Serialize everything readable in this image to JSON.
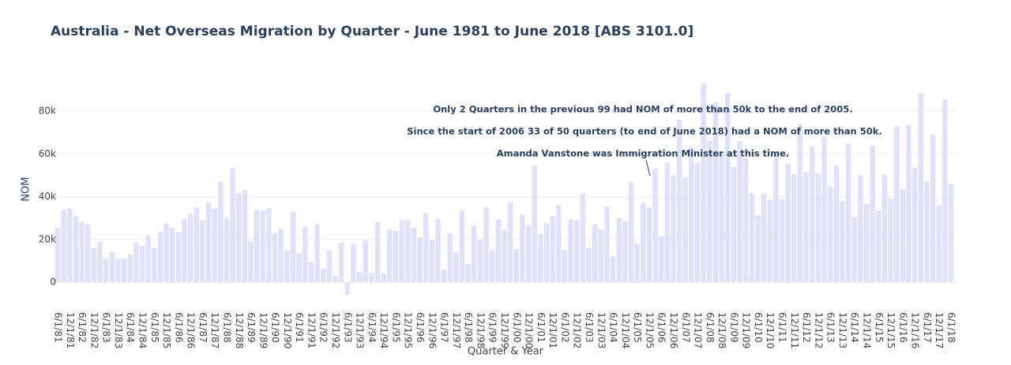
{
  "chart_data": {
    "type": "bar",
    "title": "Australia - Net Overseas Migration by Quarter - June 1981 to June 2018 [ABS 3101.0]",
    "x_label": "Quarter & Year",
    "y_label": "NOM",
    "annotations": [
      "Only 2 Quarters in the previous 99 had NOM of more than 50k to the end of 2005.",
      "Since the start of 2006 33 of 50 quarters (to end of June 2018) had a NOM of more than 50k.",
      "Amanda Vanstone was Immigration Minister at this time."
    ],
    "categories": [
      "6/1/81",
      null,
      "12/1/81",
      null,
      "6/1/82",
      null,
      "12/1/82",
      null,
      "6/1/83",
      null,
      "12/1/83",
      null,
      "6/1/84",
      null,
      "12/1/84",
      null,
      "6/1/85",
      null,
      "12/1/85",
      null,
      "6/1/86",
      null,
      "12/1/86",
      null,
      "6/1/87",
      null,
      "12/1/87",
      null,
      "6/1/88",
      null,
      "12/1/88",
      null,
      "6/1/89",
      null,
      "12/1/89",
      null,
      "6/1/90",
      null,
      "12/1/90",
      null,
      "6/1/91",
      null,
      "12/1/91",
      null,
      "6/1/92",
      null,
      "12/1/92",
      null,
      "6/1/93",
      null,
      "12/1/93",
      null,
      "6/1/94",
      null,
      "12/1/94",
      null,
      "6/1/95",
      null,
      "12/1/95",
      null,
      "6/1/96",
      null,
      "12/1/96",
      null,
      "6/1/97",
      null,
      "12/1/97",
      null,
      "6/1/98",
      null,
      "12/1/98",
      null,
      "6/1/99",
      null,
      "12/1/99",
      null,
      "6/1/00",
      null,
      "12/1/00",
      null,
      "6/1/01",
      null,
      "12/1/01",
      null,
      "6/1/02",
      null,
      "12/1/02",
      null,
      "6/1/03",
      null,
      "12/1/03",
      null,
      "6/1/04",
      null,
      "12/1/04",
      null,
      "6/1/05",
      null,
      "12/1/05",
      null,
      "6/1/06",
      null,
      "12/1/06",
      null,
      "6/1/07",
      null,
      "12/1/07",
      null,
      "6/1/08",
      null,
      "12/1/08",
      null,
      "6/1/09",
      null,
      "12/1/09",
      null,
      "6/1/10",
      null,
      "12/1/10",
      null,
      "6/1/11",
      null,
      "12/1/11",
      null,
      "6/1/12",
      null,
      "12/1/12",
      null,
      "6/1/13",
      null,
      "12/1/13",
      null,
      "6/1/14",
      null,
      "12/1/14",
      null,
      "6/1/15",
      null,
      "12/1/15",
      null,
      "6/1/16",
      null,
      "12/1/16",
      null,
      "6/1/17",
      null,
      "12/1/17",
      null,
      "6/1/18"
    ],
    "values": [
      25500,
      34000,
      34500,
      31000,
      28000,
      27000,
      16000,
      19000,
      11000,
      14000,
      11000,
      11000,
      13000,
      18500,
      17000,
      22000,
      16000,
      23500,
      27500,
      25500,
      23500,
      29500,
      32000,
      35000,
      29000,
      37500,
      34500,
      47000,
      30000,
      53500,
      41500,
      43000,
      19000,
      34000,
      33500,
      34500,
      23000,
      25000,
      15000,
      33000,
      13500,
      26000,
      9500,
      27000,
      6500,
      15000,
      3000,
      18500,
      -6000,
      18000,
      5000,
      19500,
      4500,
      28000,
      4000,
      25000,
      24000,
      29000,
      29000,
      25500,
      21000,
      32500,
      19500,
      29500,
      6000,
      23000,
      14000,
      33500,
      8500,
      26500,
      20000,
      35000,
      15000,
      29500,
      24500,
      37500,
      15500,
      31500,
      26500,
      54500,
      22500,
      27500,
      31000,
      36000,
      15000,
      29500,
      29000,
      41500,
      16000,
      27000,
      25000,
      35500,
      12000,
      30000,
      28500,
      47000,
      18000,
      37000,
      35000,
      53000,
      21500,
      56000,
      50000,
      76000,
      49000,
      63000,
      56000,
      93000,
      66000,
      84000,
      61000,
      88500,
      54000,
      66000,
      58000,
      41500,
      31500,
      41500,
      38500,
      61000,
      39000,
      55500,
      50500,
      74000,
      51500,
      63500,
      51000,
      68000,
      45000,
      54500,
      38000,
      65000,
      30500,
      50000,
      36500,
      64000,
      33500,
      50000,
      39000,
      73000,
      43500,
      73500,
      53500,
      88500,
      47000,
      69000,
      36000,
      85500,
      46000
    ],
    "color": "#dfe0fb",
    "ylim": [
      -8000,
      97000
    ],
    "yticks": [
      0,
      {
        "value": 20000,
        "label": "20k"
      },
      {
        "value": 40000,
        "label": "40k"
      },
      {
        "value": 60000,
        "label": "60k"
      },
      {
        "value": 80000,
        "label": "80k"
      }
    ],
    "grid": true
  }
}
